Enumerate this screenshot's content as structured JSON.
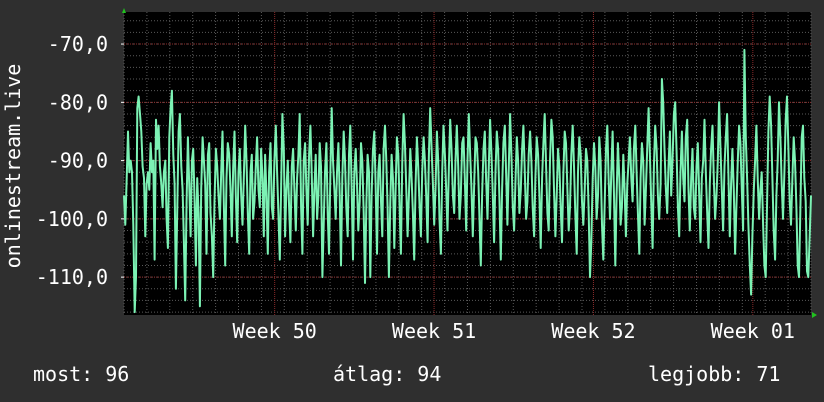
{
  "chart_data": {
    "type": "line",
    "ylabel": "onlinestream.live",
    "ylim": [
      -116.5,
      -64.5
    ],
    "yticks": [
      -70,
      -80,
      -90,
      -100,
      -110
    ],
    "ytick_labels": [
      "-70,0",
      "-80,0",
      "-90,0",
      "-100,0",
      "-110,0"
    ],
    "xlim": [
      0,
      30
    ],
    "xticks": [
      {
        "pos": 6.58,
        "label": "Week 50"
      },
      {
        "pos": 13.54,
        "label": "Week 51"
      },
      {
        "pos": 20.5,
        "label": "Week 52"
      },
      {
        "pos": 27.46,
        "label": "Week 01"
      }
    ],
    "grid": true,
    "series": [
      {
        "values": [
          -96,
          -101,
          -93,
          -85,
          -92,
          -90,
          -92,
          -101,
          -116,
          -110,
          -81,
          -79,
          -82,
          -85,
          -91,
          -93,
          -103,
          -94,
          -92,
          -95,
          -87,
          -92,
          -90,
          -107,
          -83,
          -88,
          -84,
          -91,
          -94,
          -98,
          -92,
          -90,
          -100,
          -105,
          -86,
          -81,
          -78,
          -89,
          -94,
          -112,
          -98,
          -85,
          -82,
          -91,
          -95,
          -104,
          -114,
          -97,
          -86,
          -94,
          -103,
          -90,
          -88,
          -97,
          -108,
          -93,
          -99,
          -115,
          -95,
          -86,
          -90,
          -94,
          -106,
          -89,
          -87,
          -99,
          -103,
          -110,
          -97,
          -88,
          -91,
          -96,
          -100,
          -92,
          -85,
          -98,
          -108,
          -93,
          -87,
          -89,
          -95,
          -103,
          -91,
          -85,
          -96,
          -104,
          -92,
          -88,
          -96,
          -101,
          -93,
          -84,
          -90,
          -99,
          -106,
          -92,
          -89,
          -100,
          -97,
          -91,
          -86,
          -95,
          -98,
          -88,
          -93,
          -103,
          -89,
          -96,
          -106,
          -92,
          -87,
          -98,
          -100,
          -90,
          -84,
          -92,
          -99,
          -107,
          -95,
          -82,
          -88,
          -103,
          -95,
          -90,
          -98,
          -104,
          -91,
          -88,
          -95,
          -102,
          -93,
          -89,
          -82,
          -98,
          -106,
          -90,
          -87,
          -95,
          -101,
          -89,
          -84,
          -92,
          -103,
          -95,
          -89,
          -100,
          -96,
          -87,
          -91,
          -110,
          -101,
          -92,
          -87,
          -99,
          -106,
          -92,
          -81,
          -90,
          -95,
          -100,
          -92,
          -87,
          -96,
          -108,
          -93,
          -85,
          -90,
          -98,
          -103,
          -89,
          -84,
          -95,
          -107,
          -92,
          -88,
          -94,
          -102,
          -97,
          -87,
          -90,
          -99,
          -111,
          -98,
          -89,
          -92,
          -110,
          -96,
          -88,
          -85,
          -94,
          -106,
          -92,
          -89,
          -97,
          -103,
          -88,
          -84,
          -90,
          -98,
          -110,
          -97,
          -89,
          -93,
          -105,
          -95,
          -86,
          -89,
          -98,
          -106,
          -90,
          -82,
          -87,
          -95,
          -103,
          -96,
          -88,
          -93,
          -99,
          -107,
          -94,
          -86,
          -91,
          -98,
          -103,
          -92,
          -86,
          -90,
          -96,
          -104,
          -89,
          -81,
          -88,
          -94,
          -101,
          -95,
          -85,
          -90,
          -100,
          -106,
          -92,
          -84,
          -89,
          -95,
          -102,
          -91,
          -83,
          -88,
          -96,
          -99,
          -90,
          -84,
          -91,
          -100,
          -96,
          -87,
          -86,
          -93,
          -102,
          -90,
          -82,
          -89,
          -95,
          -103,
          -94,
          -86,
          -87,
          -92,
          -100,
          -108,
          -96,
          -88,
          -85,
          -93,
          -100,
          -91,
          -83,
          -89,
          -96,
          -104,
          -92,
          -85,
          -88,
          -97,
          -107,
          -95,
          -87,
          -84,
          -92,
          -101,
          -91,
          -82,
          -89,
          -98,
          -102,
          -94,
          -86,
          -90,
          -99,
          -95,
          -88,
          -84,
          -92,
          -100,
          -97,
          -89,
          -85,
          -90,
          -98,
          -103,
          -93,
          -86,
          -89,
          -96,
          -105,
          -93,
          -87,
          -82,
          -91,
          -99,
          -102,
          -90,
          -83,
          -86,
          -95,
          -103,
          -96,
          -88,
          -91,
          -98,
          -104,
          -92,
          -85,
          -87,
          -95,
          -102,
          -98,
          -89,
          -84,
          -91,
          -99,
          -106,
          -92,
          -86,
          -89,
          -97,
          -101,
          -95,
          -88,
          -90,
          -99,
          -110,
          -104,
          -93,
          -87,
          -91,
          -100,
          -96,
          -86,
          -90,
          -101,
          -107,
          -98,
          -88,
          -84,
          -93,
          -100,
          -92,
          -85,
          -96,
          -108,
          -96,
          -87,
          -93,
          -101,
          -98,
          -89,
          -95,
          -103,
          -94,
          -90,
          -86,
          -93,
          -97,
          -88,
          -84,
          -92,
          -99,
          -106,
          -93,
          -87,
          -90,
          -101,
          -95,
          -88,
          -81,
          -89,
          -97,
          -105,
          -91,
          -84,
          -88,
          -96,
          -100,
          -94,
          -76,
          -80,
          -88,
          -95,
          -99,
          -91,
          -85,
          -96,
          -90,
          -82,
          -80,
          -88,
          -98,
          -103,
          -92,
          -85,
          -93,
          -97,
          -86,
          -83,
          -95,
          -102,
          -93,
          -88,
          -98,
          -100,
          -91,
          -87,
          -96,
          -104,
          -93,
          -90,
          -83,
          -92,
          -99,
          -105,
          -94,
          -88,
          -84,
          -93,
          -100,
          -96,
          -90,
          -80,
          -88,
          -95,
          -102,
          -91,
          -86,
          -82,
          -93,
          -103,
          -94,
          -88,
          -95,
          -106,
          -98,
          -90,
          -84,
          -87,
          -95,
          -102,
          -71,
          -86,
          -93,
          -101,
          -108,
          -113,
          -103,
          -95,
          -90,
          -84,
          -93,
          -100,
          -95,
          -92,
          -101,
          -108,
          -110,
          -97,
          -85,
          -79,
          -84,
          -93,
          -102,
          -107,
          -96,
          -90,
          -80,
          -86,
          -94,
          -100,
          -92,
          -83,
          -79,
          -88,
          -97,
          -101,
          -93,
          -86,
          -90,
          -98,
          -108,
          -110,
          -99,
          -86,
          -84,
          -93,
          -97,
          -109,
          -110,
          -103,
          -96
        ]
      }
    ],
    "colors": {
      "line": "#7cf2b4",
      "plot_bg": "#000000",
      "page_bg": "#2f2f2f",
      "grid": "#5a5a5a",
      "grid_major": "#8a2a2a",
      "axis_arrow": "#21c21f"
    }
  },
  "stats": {
    "current": "most: 96",
    "average": "átlag: 94",
    "best": "legjobb: 71"
  }
}
